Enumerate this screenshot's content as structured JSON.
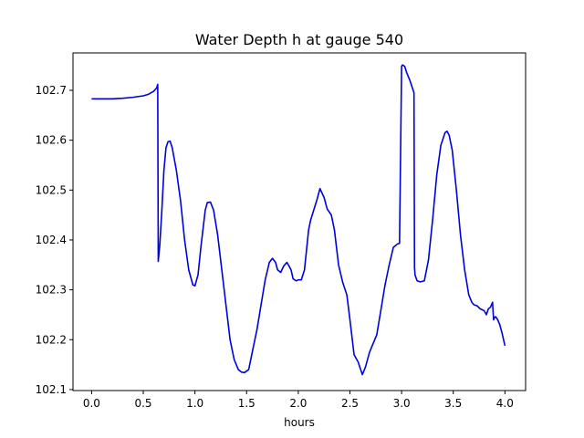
{
  "chart_data": {
    "type": "line",
    "title": "Water Depth h at gauge 540",
    "xlabel": "hours",
    "ylabel": "",
    "xlim": [
      -0.18,
      4.2
    ],
    "ylim": [
      102.098,
      102.775
    ],
    "xticks": [
      0.0,
      0.5,
      1.0,
      1.5,
      2.0,
      2.5,
      3.0,
      3.5,
      4.0
    ],
    "xtick_labels": [
      "0.0",
      "0.5",
      "1.0",
      "1.5",
      "2.0",
      "2.5",
      "3.0",
      "3.5",
      "4.0"
    ],
    "yticks": [
      102.1,
      102.2,
      102.3,
      102.4,
      102.5,
      102.6,
      102.7
    ],
    "ytick_labels": [
      "102.1",
      "102.2",
      "102.3",
      "102.4",
      "102.5",
      "102.6",
      "102.7"
    ],
    "grid": false,
    "colors": {
      "series": "#0000dd"
    },
    "series": [
      {
        "x": [
          0.0,
          0.2,
          0.3,
          0.4,
          0.5,
          0.55,
          0.6,
          0.63,
          0.64,
          0.645,
          0.66,
          0.68,
          0.7,
          0.72,
          0.74,
          0.76,
          0.78,
          0.82,
          0.86,
          0.9,
          0.94,
          0.98,
          1.0,
          1.03,
          1.06,
          1.1,
          1.12,
          1.15,
          1.18,
          1.22,
          1.26,
          1.3,
          1.34,
          1.38,
          1.42,
          1.45,
          1.48,
          1.52,
          1.56,
          1.6,
          1.64,
          1.68,
          1.72,
          1.75,
          1.78,
          1.8,
          1.83,
          1.86,
          1.89,
          1.91,
          1.93,
          1.95,
          1.98,
          2.0,
          2.03,
          2.06,
          2.1,
          2.12,
          2.15,
          2.18,
          2.21,
          2.25,
          2.28,
          2.32,
          2.35,
          2.39,
          2.43,
          2.47,
          2.5,
          2.54,
          2.58,
          2.62,
          2.65,
          2.69,
          2.72,
          2.76,
          2.8,
          2.84,
          2.88,
          2.92,
          2.96,
          2.98,
          3.0,
          3.005,
          3.01,
          3.03,
          3.05,
          3.08,
          3.12,
          3.125,
          3.13,
          3.15,
          3.18,
          3.22,
          3.26,
          3.3,
          3.34,
          3.38,
          3.42,
          3.44,
          3.46,
          3.49,
          3.53,
          3.57,
          3.61,
          3.65,
          3.68,
          3.7,
          3.73,
          3.76,
          3.8,
          3.82,
          3.84,
          3.86,
          3.87,
          3.88,
          3.89,
          3.9,
          3.91,
          3.93,
          3.95,
          3.97,
          4.0
        ],
        "y": [
          102.683,
          102.683,
          102.684,
          102.686,
          102.689,
          102.692,
          102.698,
          102.705,
          102.712,
          102.357,
          102.39,
          102.46,
          102.54,
          102.585,
          102.597,
          102.598,
          102.585,
          102.54,
          102.48,
          102.4,
          102.34,
          102.31,
          102.308,
          102.33,
          102.39,
          102.46,
          102.475,
          102.476,
          102.46,
          102.41,
          102.34,
          102.27,
          102.2,
          102.16,
          102.14,
          102.135,
          102.134,
          102.14,
          102.18,
          102.22,
          102.27,
          102.32,
          102.355,
          102.363,
          102.355,
          102.34,
          102.335,
          102.348,
          102.355,
          102.348,
          102.34,
          102.322,
          102.318,
          102.32,
          102.32,
          102.34,
          102.42,
          102.44,
          102.46,
          102.48,
          102.503,
          102.485,
          102.462,
          102.45,
          102.42,
          102.35,
          102.315,
          102.29,
          102.24,
          102.17,
          102.155,
          102.13,
          102.145,
          102.175,
          102.19,
          102.21,
          102.26,
          102.31,
          102.35,
          102.385,
          102.392,
          102.393,
          102.748,
          102.75,
          102.751,
          102.748,
          102.735,
          102.72,
          102.695,
          102.345,
          102.33,
          102.318,
          102.316,
          102.318,
          102.36,
          102.44,
          102.53,
          102.59,
          102.615,
          102.618,
          102.61,
          102.58,
          102.5,
          102.41,
          102.34,
          102.29,
          102.275,
          102.27,
          102.268,
          102.262,
          102.258,
          102.25,
          102.262,
          102.265,
          102.27,
          102.275,
          102.24,
          102.245,
          102.246,
          102.24,
          102.23,
          102.215,
          102.188
        ]
      }
    ]
  }
}
